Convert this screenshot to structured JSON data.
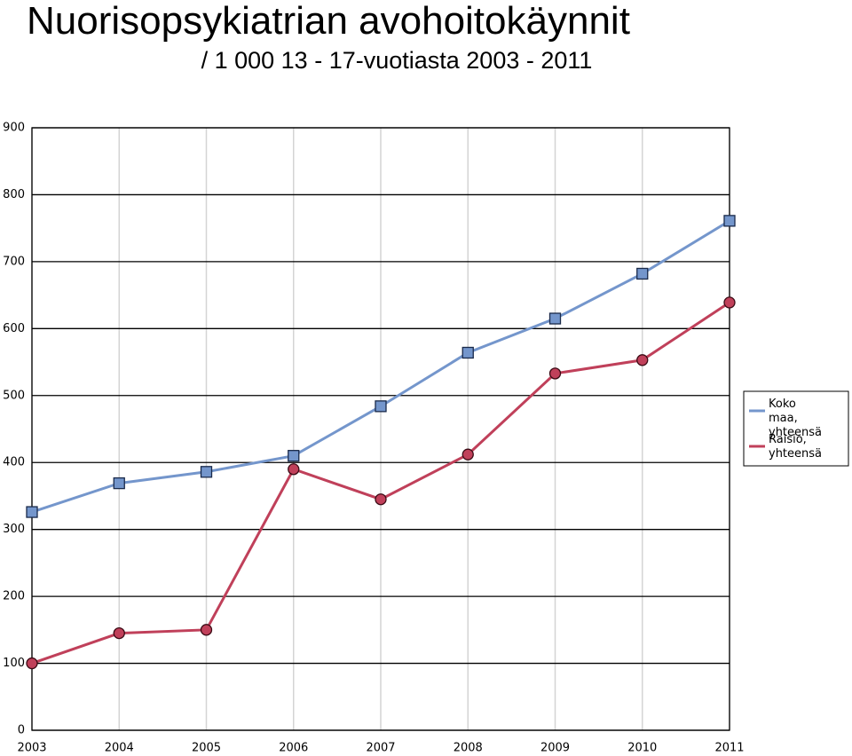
{
  "chart_data": {
    "type": "line",
    "title": "Nuorisopsykiatrian avohoitokäynnit",
    "subtitle": "/ 1 000 13 - 17-vuotiasta 2003 - 2011",
    "categories": [
      "2003",
      "2004",
      "2005",
      "2006",
      "2007",
      "2008",
      "2009",
      "2010",
      "2011"
    ],
    "series": [
      {
        "name": "Koko maa, yhteensä",
        "color": "#7496cc",
        "marker": "square",
        "values": [
          326,
          369,
          386,
          410,
          484,
          564,
          615,
          682,
          761
        ]
      },
      {
        "name": "Raisio, yhteensä",
        "color": "#c0405a",
        "marker": "circle",
        "values": [
          100,
          145,
          150,
          390,
          345,
          412,
          533,
          553,
          639
        ]
      }
    ],
    "ylim": [
      0,
      900
    ],
    "yticks": [
      0,
      100,
      200,
      300,
      400,
      500,
      600,
      700,
      800,
      900
    ],
    "grid": true,
    "legend": "right"
  }
}
